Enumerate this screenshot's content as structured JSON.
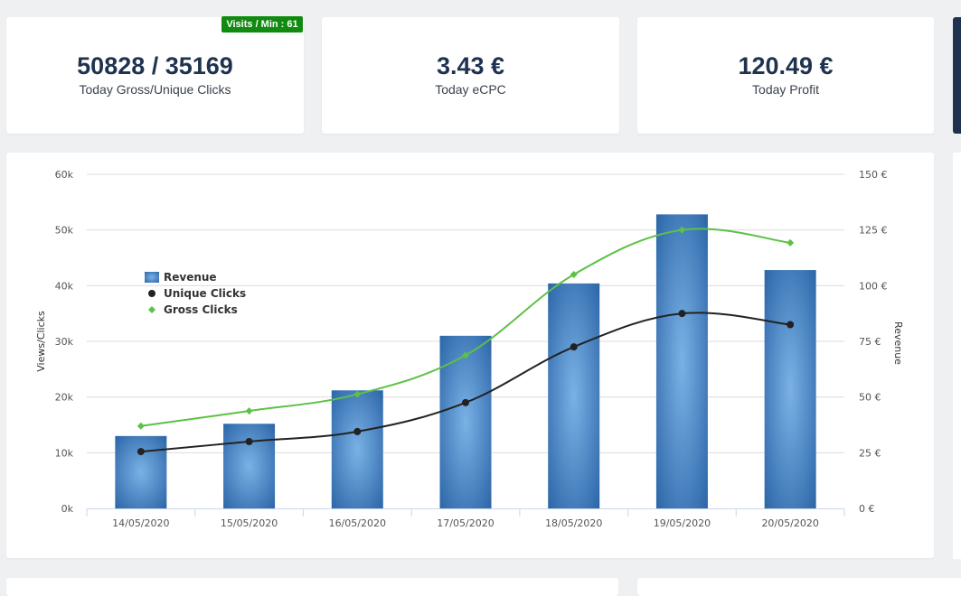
{
  "stats": [
    {
      "value": "50828 / 35169",
      "label": "Today Gross/Unique Clicks"
    },
    {
      "value": "3.43 €",
      "label": "Today eCPC"
    },
    {
      "value": "120.49 €",
      "label": "Today Profit"
    }
  ],
  "badge": "Visits / Min : 61",
  "colors": {
    "revenue_bar": "#4a86c5",
    "unique_line": "#222222",
    "gross_line": "#5cc146",
    "title_text": "#1f3350",
    "badge_bg": "#108b10"
  },
  "chart_data": {
    "type": "bar",
    "categories": [
      "14/05/2020",
      "15/05/2020",
      "16/05/2020",
      "17/05/2020",
      "18/05/2020",
      "19/05/2020",
      "20/05/2020"
    ],
    "series": [
      {
        "name": "Revenue",
        "type": "bar",
        "axis": "right",
        "values": [
          32.5,
          38,
          53,
          77.5,
          101,
          132,
          107
        ]
      },
      {
        "name": "Unique Clicks",
        "type": "line",
        "axis": "left",
        "values": [
          10200,
          12000,
          13800,
          19000,
          29000,
          35000,
          33000
        ]
      },
      {
        "name": "Gross Clicks",
        "type": "line",
        "axis": "left",
        "values": [
          14800,
          17500,
          20500,
          27500,
          42000,
          50000,
          47700
        ]
      }
    ],
    "y_left": {
      "label": "Views/Clicks",
      "ticks": [
        "0k",
        "10k",
        "20k",
        "30k",
        "40k",
        "50k",
        "60k"
      ],
      "range": [
        0,
        60000
      ]
    },
    "y_right": {
      "label": "Revenue",
      "ticks": [
        "0 €",
        "25 €",
        "50 €",
        "75 €",
        "100 €",
        "125 €",
        "150 €"
      ],
      "range": [
        0,
        150
      ]
    },
    "grid": true,
    "legend": "middle-left"
  }
}
